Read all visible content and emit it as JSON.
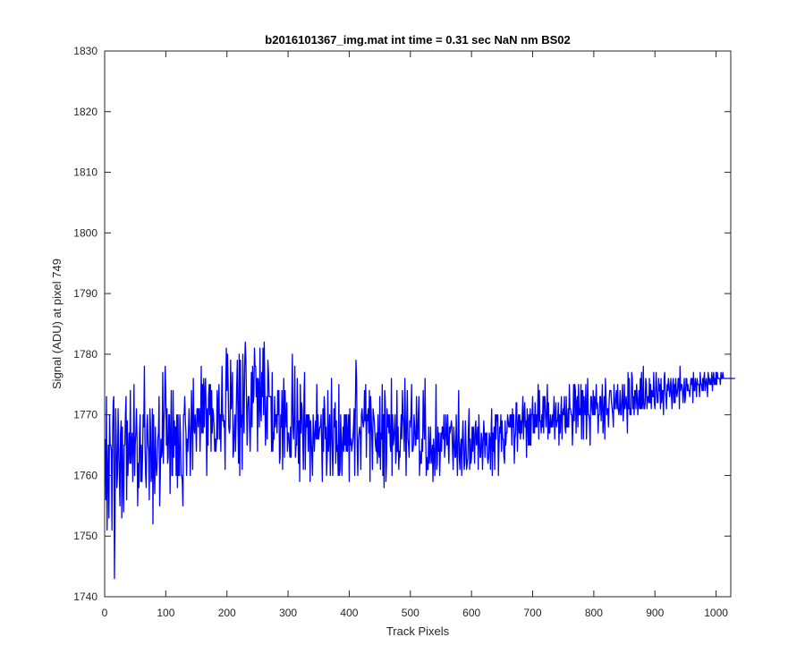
{
  "chart_data": {
    "type": "line",
    "title": "b2016101367_img.mat int time = 0.31 sec  NaN nm BS02",
    "xlabel": "Track Pixels",
    "ylabel": "Signal (ADU) at pixel 749",
    "xlim": [
      0,
      1024
    ],
    "ylim": [
      1740,
      1830
    ],
    "xticks": [
      "0",
      "100",
      "200",
      "300",
      "400",
      "500",
      "600",
      "700",
      "800",
      "900",
      "1000"
    ],
    "yticks": [
      "1740",
      "1750",
      "1760",
      "1770",
      "1780",
      "1790",
      "1800",
      "1810",
      "1820",
      "1830"
    ],
    "grid": false,
    "legend": "none",
    "line_color": "#0000ff",
    "series": [
      {
        "x_start": 1,
        "x_step": 1,
        "y": [
          1766,
          1756,
          1773,
          1751,
          1760,
          1765,
          1753,
          1770,
          1765,
          1765,
          1764,
          1751,
          1767,
          1772,
          1773,
          1743,
          1754,
          1771,
          1766,
          1758,
          1760,
          1771,
          1765,
          1760,
          1755,
          1767,
          1769,
          1753,
          1768,
          1760,
          1754,
          1765,
          1765,
          1770,
          1773,
          1756,
          1769,
          1760,
          1764,
          1767,
          1762,
          1774,
          1762,
          1765,
          1767,
          1759,
          1765,
          1775,
          1760,
          1765,
          1767,
          1771,
          1766,
          1755,
          1762,
          1758,
          1767,
          1770,
          1759,
          1765,
          1759,
          1763,
          1770,
          1768,
          1778,
          1765,
          1760,
          1758,
          1768,
          1770,
          1765,
          1764,
          1756,
          1771,
          1768,
          1759,
          1760,
          1771,
          1752,
          1770,
          1761,
          1757,
          1768,
          1762,
          1760,
          1762,
          1766,
          1767,
          1773,
          1755,
          1760,
          1766,
          1763,
          1764,
          1777,
          1762,
          1769,
          1771,
          1778,
          1774,
          1765,
          1771,
          1762,
          1763,
          1770,
          1770,
          1757,
          1767,
          1774,
          1760,
          1760,
          1774,
          1763,
          1769,
          1765,
          1768,
          1760,
          1770,
          1758,
          1770,
          1760,
          1760,
          1770,
          1767,
          1760,
          1760,
          1759,
          1755,
          1770,
          1770,
          1773,
          1769,
          1767,
          1760,
          1766,
          1764,
          1767,
          1771,
          1768,
          1760,
          1765,
          1774,
          1769,
          1761,
          1776,
          1768,
          1767,
          1770,
          1768,
          1764,
          1771,
          1771,
          1768,
          1771,
          1771,
          1764,
          1769,
          1778,
          1767,
          1775,
          1767,
          1776,
          1768,
          1774,
          1776,
          1770,
          1760,
          1771,
          1765,
          1773,
          1775,
          1770,
          1775,
          1764,
          1774,
          1767,
          1771,
          1770,
          1768,
          1764,
          1766,
          1764,
          1766,
          1774,
          1766,
          1772,
          1775,
          1766,
          1770,
          1764,
          1771,
          1778,
          1769,
          1770,
          1768,
          1769,
          1761,
          1774,
          1781,
          1774,
          1780,
          1775,
          1768,
          1767,
          1768,
          1779,
          1771,
          1773,
          1777,
          1763,
          1764,
          1768,
          1770,
          1764,
          1769,
          1775,
          1779,
          1769,
          1762,
          1780,
          1760,
          1779,
          1768,
          1770,
          1761,
          1780,
          1771,
          1767,
          1778,
          1782,
          1779,
          1773,
          1765,
          1771,
          1773,
          1773,
          1768,
          1764,
          1770,
          1777,
          1768,
          1778,
          1772,
          1773,
          1781,
          1778,
          1778,
          1773,
          1776,
          1764,
          1776,
          1775,
          1768,
          1781,
          1771,
          1769,
          1777,
          1773,
          1781,
          1770,
          1782,
          1774,
          1765,
          1769,
          1773,
          1766,
          1779,
          1777,
          1773,
          1773,
          1773,
          1773,
          1764,
          1777,
          1764,
          1767,
          1766,
          1773,
          1768,
          1770,
          1770,
          1767,
          1774,
          1770,
          1774,
          1762,
          1763,
          1770,
          1768,
          1774,
          1761,
          1771,
          1776,
          1763,
          1774,
          1770,
          1768,
          1772,
          1764,
          1767,
          1767,
          1765,
          1763,
          1768,
          1763,
          1772,
          1780,
          1768,
          1766,
          1770,
          1778,
          1763,
          1765,
          1765,
          1776,
          1769,
          1762,
          1769,
          1759,
          1775,
          1767,
          1772,
          1771,
          1766,
          1761,
          1773,
          1777,
          1761,
          1767,
          1770,
          1768,
          1770,
          1764,
          1770,
          1769,
          1759,
          1769,
          1766,
          1763,
          1760,
          1770,
          1767,
          1764,
          1767,
          1769,
          1766,
          1775,
          1766,
          1770,
          1766,
          1767,
          1768,
          1768,
          1770,
          1765,
          1759,
          1771,
          1764,
          1773,
          1771,
          1766,
          1768,
          1760,
          1763,
          1774,
          1764,
          1766,
          1770,
          1760,
          1766,
          1776,
          1766,
          1760,
          1765,
          1771,
          1768,
          1772,
          1762,
          1769,
          1764,
          1765,
          1760,
          1775,
          1760,
          1761,
          1770,
          1766,
          1760,
          1765,
          1768,
          1764,
          1770,
          1765,
          1770,
          1764,
          1770,
          1764,
          1767,
          1770,
          1759,
          1771,
          1765,
          1766,
          1764,
          1765,
          1766,
          1768,
          1771,
          1760,
          1771,
          1779,
          1776,
          1765,
          1760,
          1766,
          1767,
          1768,
          1767,
          1761,
          1770,
          1771,
          1769,
          1768,
          1769,
          1774,
          1769,
          1775,
          1763,
          1770,
          1769,
          1771,
          1767,
          1774,
          1759,
          1773,
          1770,
          1766,
          1761,
          1771,
          1770,
          1769,
          1767,
          1765,
          1764,
          1767,
          1762,
          1770,
          1764,
          1763,
          1773,
          1761,
          1767,
          1766,
          1775,
          1760,
          1770,
          1758,
          1774,
          1772,
          1759,
          1762,
          1771,
          1768,
          1770,
          1767,
          1770,
          1765,
          1764,
          1776,
          1760,
          1770,
          1765,
          1766,
          1768,
          1770,
          1762,
          1764,
          1774,
          1764,
          1768,
          1761,
          1764,
          1763,
          1767,
          1770,
          1766,
          1774,
          1770,
          1768,
          1764,
          1776,
          1768,
          1760,
          1769,
          1774,
          1766,
          1765,
          1763,
          1769,
          1768,
          1770,
          1775,
          1764,
          1764,
          1765,
          1770,
          1768,
          1765,
          1765,
          1773,
          1766,
          1766,
          1770,
          1773,
          1760,
          1764,
          1762,
          1762,
          1766,
          1764,
          1774,
          1769,
          1766,
          1776,
          1767,
          1760,
          1763,
          1761,
          1761,
          1768,
          1762,
          1764,
          1768,
          1762,
          1763,
          1765,
          1759,
          1766,
          1764,
          1760,
          1765,
          1775,
          1761,
          1762,
          1768,
          1764,
          1767,
          1760,
          1764,
          1767,
          1764,
          1768,
          1768,
          1766,
          1770,
          1763,
          1765,
          1770,
          1767,
          1765,
          1770,
          1765,
          1762,
          1768,
          1767,
          1768,
          1769,
          1768,
          1764,
          1761,
          1768,
          1766,
          1763,
          1763,
          1770,
          1764,
          1760,
          1767,
          1774,
          1763,
          1761,
          1765,
          1766,
          1760,
          1766,
          1769,
          1765,
          1761,
          1762,
          1769,
          1765,
          1761,
          1762,
          1763,
          1768,
          1771,
          1761,
          1766,
          1762,
          1763,
          1768,
          1764,
          1768,
          1766,
          1762,
          1768,
          1769,
          1765,
          1766,
          1768,
          1761,
          1770,
          1766,
          1763,
          1763,
          1767,
          1766,
          1761,
          1765,
          1769,
          1767,
          1763,
          1767,
          1765,
          1767,
          1763,
          1762,
          1763,
          1767,
          1766,
          1761,
          1767,
          1771,
          1760,
          1767,
          1764,
          1768,
          1761,
          1770,
          1766,
          1770,
          1769,
          1770,
          1760,
          1765,
          1768,
          1767,
          1770,
          1764,
          1769,
          1766,
          1766,
          1763,
          1762,
          1769,
          1765,
          1767,
          1767,
          1770,
          1769,
          1768,
          1768,
          1770,
          1768,
          1770,
          1765,
          1771,
          1768,
          1770,
          1762,
          1766,
          1767,
          1772,
          1772,
          1764,
          1768,
          1770,
          1767,
          1770,
          1766,
          1769,
          1767,
          1770,
          1773,
          1766,
          1770,
          1772,
          1768,
          1769,
          1763,
          1771,
          1769,
          1765,
          1770,
          1765,
          1771,
          1765,
          1770,
          1770,
          1773,
          1767,
          1770,
          1767,
          1772,
          1768,
          1770,
          1768,
          1770,
          1775,
          1766,
          1774,
          1769,
          1769,
          1767,
          1770,
          1768,
          1773,
          1767,
          1773,
          1773,
          1770,
          1768,
          1771,
          1775,
          1766,
          1772,
          1767,
          1767,
          1770,
          1768,
          1768,
          1770,
          1768,
          1770,
          1773,
          1766,
          1770,
          1772,
          1768,
          1769,
          1769,
          1772,
          1765,
          1770,
          1767,
          1770,
          1773,
          1766,
          1770,
          1771,
          1770,
          1773,
          1768,
          1767,
          1773,
          1768,
          1768,
          1771,
          1768,
          1775,
          1771,
          1771,
          1770,
          1770,
          1765,
          1769,
          1775,
          1769,
          1775,
          1774,
          1767,
          1772,
          1773,
          1768,
          1775,
          1770,
          1771,
          1770,
          1775,
          1766,
          1774,
          1774,
          1766,
          1773,
          1771,
          1770,
          1775,
          1766,
          1771,
          1776,
          1770,
          1770,
          1769,
          1765,
          1773,
          1773,
          1771,
          1770,
          1774,
          1770,
          1773,
          1770,
          1772,
          1775,
          1771,
          1772,
          1767,
          1770,
          1770,
          1773,
          1773,
          1769,
          1772,
          1775,
          1767,
          1770,
          1773,
          1766,
          1776,
          1773,
          1770,
          1771,
          1771,
          1768,
          1772,
          1774,
          1774,
          1774,
          1772,
          1771,
          1770,
          1768,
          1775,
          1771,
          1771,
          1773,
          1774,
          1771,
          1775,
          1771,
          1770,
          1771,
          1774,
          1770,
          1770,
          1773,
          1775,
          1769,
          1771,
          1775,
          1771,
          1772,
          1773,
          1771,
          1767,
          1777,
          1771,
          1776,
          1770,
          1771,
          1770,
          1777,
          1776,
          1771,
          1773,
          1770,
          1774,
          1774,
          1771,
          1775,
          1773,
          1770,
          1772,
          1774,
          1771,
          1776,
          1771,
          1777,
          1771,
          1772,
          1778,
          1771,
          1771,
          1772,
          1776,
          1775,
          1771,
          1773,
          1773,
          1772,
          1776,
          1772,
          1775,
          1771,
          1774,
          1773,
          1773,
          1777,
          1772,
          1771,
          1774,
          1777,
          1774,
          1772,
          1772,
          1776,
          1774,
          1775,
          1771,
          1776,
          1772,
          1774,
          1774,
          1770,
          1776,
          1777,
          1774,
          1773,
          1771,
          1775,
          1774,
          1776,
          1775,
          1773,
          1774,
          1776,
          1773,
          1771,
          1775,
          1776,
          1772,
          1775,
          1772,
          1776,
          1774,
          1773,
          1774,
          1776,
          1776,
          1771,
          1778,
          1774,
          1775,
          1775,
          1774,
          1772,
          1774,
          1776,
          1772,
          1773,
          1776,
          1776,
          1774,
          1775,
          1774,
          1774,
          1773,
          1775,
          1776,
          1775,
          1776,
          1772,
          1777,
          1774,
          1774,
          1776,
          1775,
          1773,
          1776,
          1775,
          1775,
          1775,
          1773,
          1777,
          1775,
          1775,
          1774,
          1776,
          1774,
          1776,
          1777,
          1774,
          1775,
          1776,
          1775,
          1773,
          1777,
          1776,
          1775,
          1776,
          1775,
          1775,
          1777,
          1774,
          1776,
          1777,
          1775,
          1776,
          1775,
          1777,
          1775,
          1777,
          1776,
          1776,
          1776,
          1776,
          1775,
          1777,
          1776,
          1776,
          1777,
          1776,
          1776,
          1776,
          1776,
          1776,
          1776,
          1776,
          1776,
          1776,
          1776,
          1776,
          1776,
          1776,
          1776,
          1776,
          1776,
          1776,
          1776,
          1776,
          1776
        ]
      }
    ]
  }
}
